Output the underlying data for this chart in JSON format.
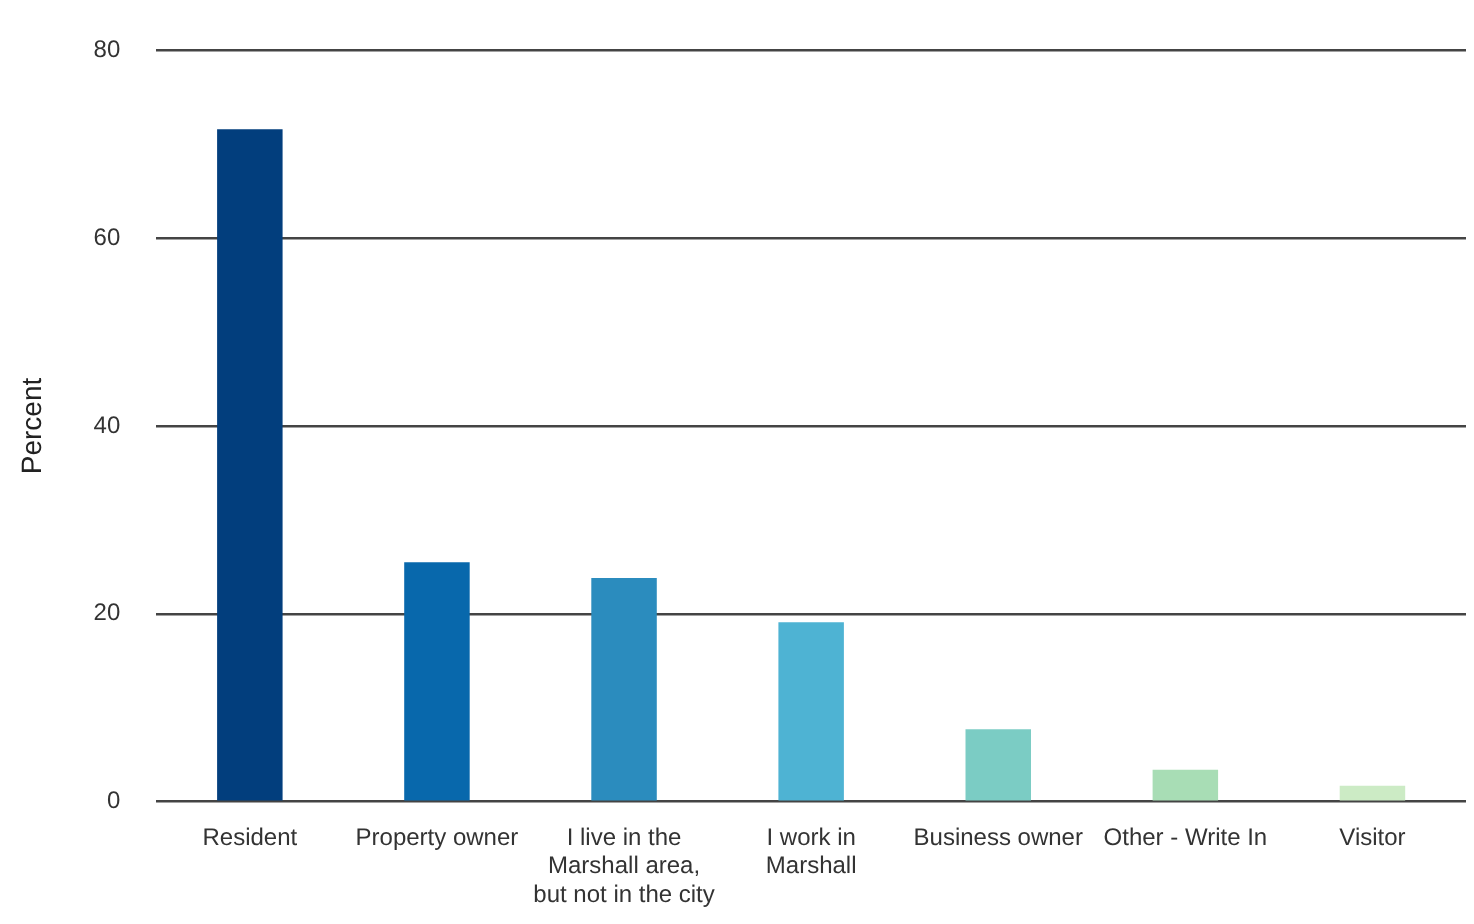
{
  "chart_data": {
    "type": "bar",
    "ylabel": "Percent",
    "categories": [
      "Resident",
      "Property owner",
      "I live in the Marshall area, but not in the city",
      "I work in Marshall",
      "Business owner",
      "Other - Write In",
      "Visitor"
    ],
    "values": [
      71.6,
      25.5,
      23.8,
      19.1,
      7.7,
      3.4,
      1.7
    ],
    "colors": [
      "#023e7d",
      "#0868ac",
      "#2b8cbe",
      "#4eb3d3",
      "#7bccc4",
      "#a8ddb5",
      "#ccebc5"
    ],
    "ylim": [
      0,
      80
    ],
    "yticks": [
      0,
      20,
      40,
      60,
      80
    ],
    "grid": "y",
    "legend": false
  }
}
